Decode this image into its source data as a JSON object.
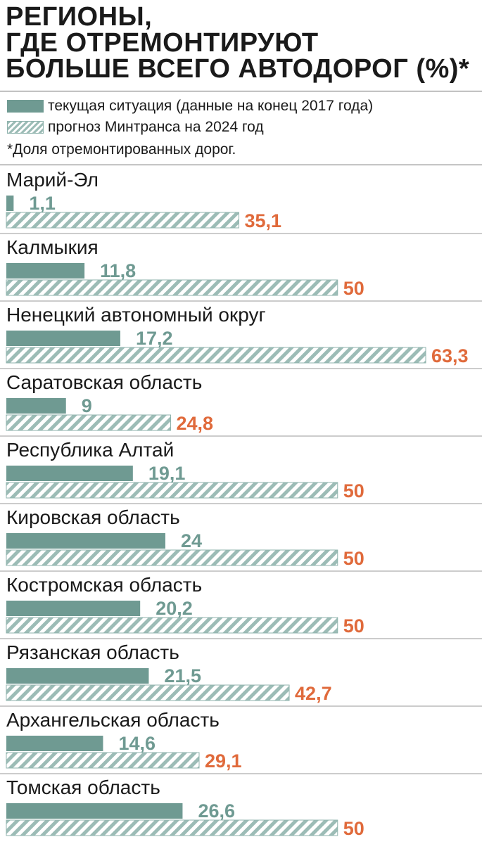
{
  "title_lines": [
    "РЕГИОНЫ,",
    "ГДЕ ОТРЕМОНТИРУЮТ",
    "БОЛЬШЕ ВСЕГО АВТОДОРОГ (%)*"
  ],
  "legend": {
    "current": "текущая ситуация (данные на конец 2017 года)",
    "forecast": "прогноз Минтранса на 2024 год"
  },
  "note": "*Доля отремонтированных дорог.",
  "colors": {
    "current": "#6f9a92",
    "forecast_value": "#e06a3b",
    "hatch": "#9cbcb6"
  },
  "chart_data": {
    "type": "bar",
    "orientation": "horizontal",
    "title": "РЕГИОНЫ, ГДЕ ОТРЕМОНТИРУЮТ БОЛЬШЕ ВСЕГО АВТОДОРОГ (%)*",
    "xlim": [
      0,
      63.3
    ],
    "categories": [
      "Марий-Эл",
      "Калмыкия",
      "Ненецкий автономный округ",
      "Саратовская область",
      "Республика Алтай",
      "Кировская область",
      "Костромская область",
      "Рязанская область",
      "Архангельская область",
      "Томская область"
    ],
    "series": [
      {
        "name": "текущая ситуация (данные на конец 2017 года)",
        "values": [
          1.1,
          11.8,
          17.2,
          9,
          19.1,
          24,
          20.2,
          21.5,
          14.6,
          26.6
        ],
        "labels": [
          "1,1",
          "11,8",
          "17,2",
          "9",
          "19,1",
          "24",
          "20,2",
          "21,5",
          "14,6",
          "26,6"
        ]
      },
      {
        "name": "прогноз Минтранса на 2024 год",
        "values": [
          35.1,
          50,
          63.3,
          24.8,
          50,
          50,
          50,
          42.7,
          29.1,
          50
        ],
        "labels": [
          "35,1",
          "50",
          "63,3",
          "24,8",
          "50",
          "50",
          "50",
          "42,7",
          "29,1",
          "50"
        ]
      }
    ],
    "legend": "top-left",
    "grid": false
  }
}
